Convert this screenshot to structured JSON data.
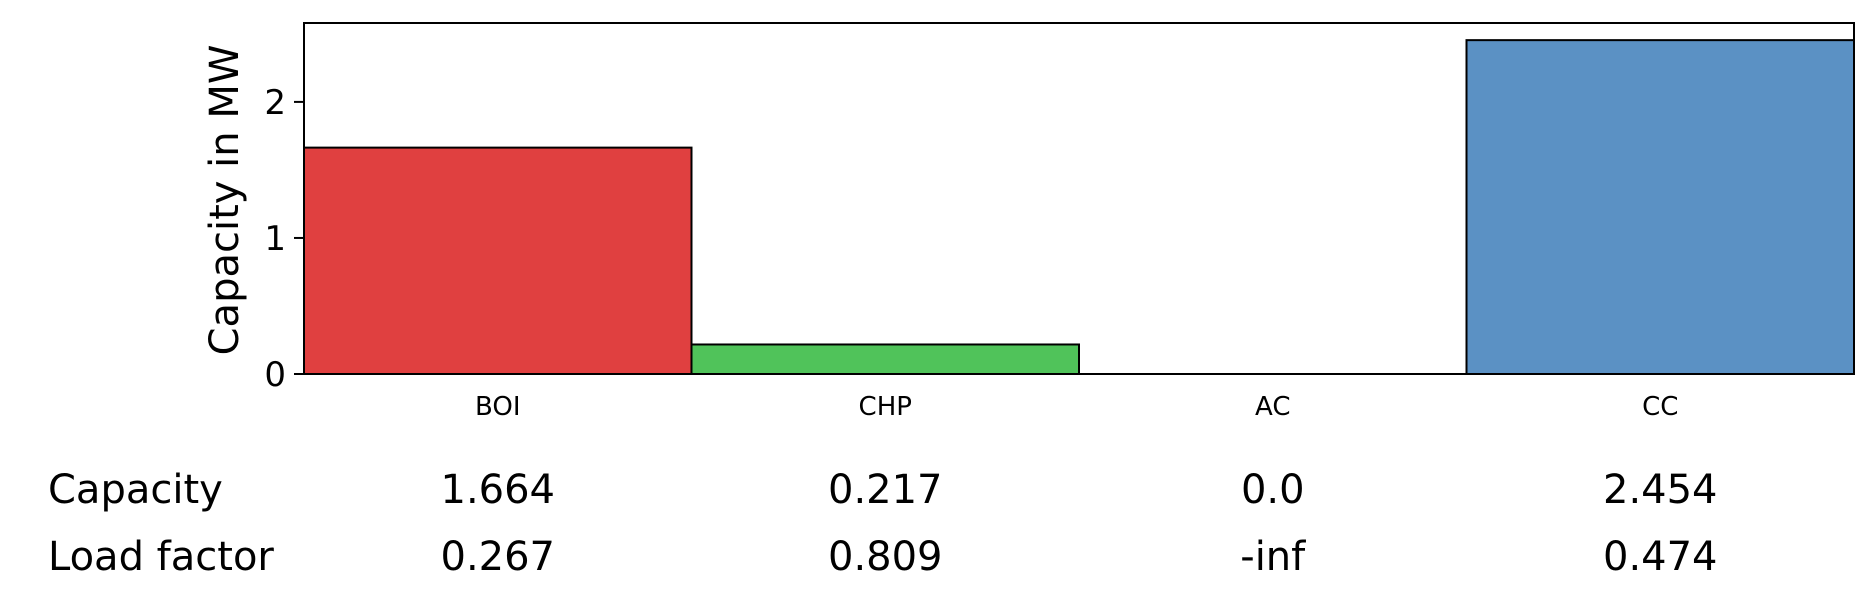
{
  "chart_data": {
    "type": "bar",
    "categories": [
      "BOI",
      "CHP",
      "AC",
      "CC"
    ],
    "values": [
      1.664,
      0.217,
      0.0,
      2.454
    ],
    "colors": [
      "#e04040",
      "#50c35a",
      "#4a90d9",
      "#5b91c4"
    ],
    "edge_color": "#000000",
    "ylabel": "Capacity in MW",
    "ylim": [
      0,
      2.58
    ],
    "yticks": [
      0,
      1,
      2
    ],
    "grid": false
  },
  "table": {
    "rows": [
      {
        "label": "Capacity",
        "values": [
          "1.664",
          "0.217",
          "0.0",
          "2.454"
        ]
      },
      {
        "label": "Load factor",
        "values": [
          "0.267",
          "0.809",
          "-inf",
          "0.474"
        ]
      }
    ]
  }
}
